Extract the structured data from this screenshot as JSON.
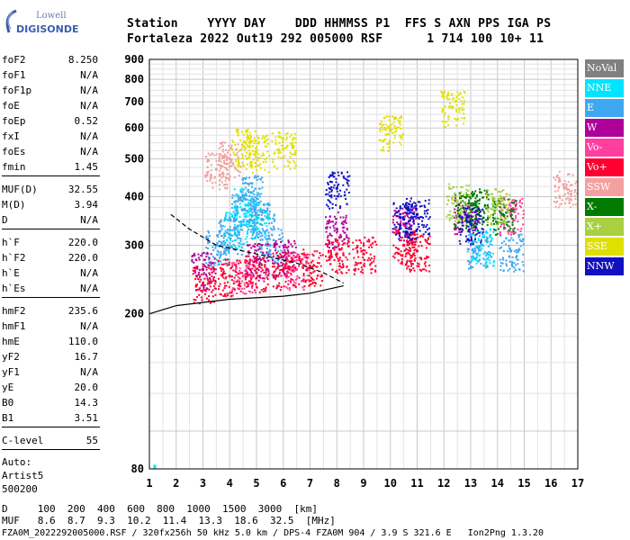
{
  "logo": {
    "top": "Lowell",
    "bottom": "DIGISONDE"
  },
  "header": {
    "labels": "Station    YYYY DAY    DDD HHMMSS P1  FFS S AXN PPS IGA PS",
    "values": "Fortaleza 2022 Out19 292 005000 RSF      1 714 100 10+ 11"
  },
  "params": {
    "group1": [
      {
        "name": "foF2",
        "value": "8.250"
      },
      {
        "name": "foF1",
        "value": "N/A"
      },
      {
        "name": "foF1p",
        "value": "N/A"
      },
      {
        "name": "foE",
        "value": "N/A"
      },
      {
        "name": "foEp",
        "value": "0.52"
      },
      {
        "name": "fxI",
        "value": "N/A"
      },
      {
        "name": "foEs",
        "value": "N/A"
      },
      {
        "name": "fmin",
        "value": "1.45"
      }
    ],
    "group2": [
      {
        "name": "MUF(D)",
        "value": "32.55"
      },
      {
        "name": "M(D)",
        "value": "3.94"
      },
      {
        "name": "D",
        "value": "N/A"
      }
    ],
    "group3": [
      {
        "name": "h`F",
        "value": "220.0"
      },
      {
        "name": "h`F2",
        "value": "220.0"
      },
      {
        "name": "h`E",
        "value": "N/A"
      },
      {
        "name": "h`Es",
        "value": "N/A"
      }
    ],
    "group4": [
      {
        "name": "hmF2",
        "value": "235.6"
      },
      {
        "name": "hmF1",
        "value": "N/A"
      },
      {
        "name": "hmE",
        "value": "110.0"
      },
      {
        "name": "yF2",
        "value": "16.7"
      },
      {
        "name": "yF1",
        "value": "N/A"
      },
      {
        "name": "yE",
        "value": "20.0"
      },
      {
        "name": "B0",
        "value": "14.3"
      },
      {
        "name": "B1",
        "value": "3.51"
      }
    ],
    "group5": [
      {
        "name": "C-level",
        "value": "55"
      }
    ],
    "auto": [
      "Auto:",
      "Artist5",
      "500200"
    ]
  },
  "chart_data": {
    "type": "scatter",
    "title": "",
    "xlabel": "",
    "ylabel": "",
    "xlim": [
      1,
      17
    ],
    "ylim": [
      80,
      900
    ],
    "x_ticks": [
      "1",
      "2",
      "3",
      "4",
      "5",
      "6",
      "7",
      "8",
      "9",
      "10",
      "11",
      "12",
      "13",
      "14",
      "15",
      "16",
      "17"
    ],
    "y_ticks": [
      "80",
      "200",
      "300",
      "400",
      "500",
      "600",
      "700",
      "800",
      "900"
    ],
    "grid": true,
    "y_scale": "log",
    "series": [
      {
        "name": "NNE",
        "color": "#00e5ff",
        "points": [
          [
            4.2,
            330
          ],
          [
            5.0,
            350
          ],
          [
            4.6,
            380
          ],
          [
            13.4,
            300
          ]
        ]
      },
      {
        "name": "E",
        "color": "#3fa7f0",
        "points": [
          [
            4.0,
            320
          ],
          [
            4.5,
            370
          ],
          [
            5.2,
            350
          ],
          [
            5.5,
            300
          ],
          [
            3.5,
            300
          ],
          [
            4.8,
            410
          ],
          [
            13.3,
            295
          ],
          [
            14.5,
            290
          ]
        ]
      },
      {
        "name": "W",
        "color": "#b0009a",
        "points": [
          [
            3.0,
            260
          ],
          [
            5.0,
            275
          ],
          [
            6.0,
            280
          ],
          [
            8.0,
            330
          ],
          [
            10.5,
            340
          ],
          [
            12.8,
            360
          ]
        ]
      },
      {
        "name": "Vo-",
        "color": "#ff3fa0",
        "points": [
          [
            4.5,
            250
          ],
          [
            6.5,
            260
          ],
          [
            14.5,
            360
          ]
        ]
      },
      {
        "name": "Vo+",
        "color": "#ff0030",
        "points": [
          [
            3.0,
            240
          ],
          [
            4.0,
            250
          ],
          [
            5.0,
            255
          ],
          [
            6.0,
            260
          ],
          [
            7.0,
            265
          ],
          [
            8.0,
            285
          ],
          [
            9.0,
            285
          ],
          [
            10.5,
            300
          ],
          [
            11.0,
            290
          ]
        ]
      },
      {
        "name": "SSW",
        "color": "#f4a0a0",
        "points": [
          [
            3.5,
            470
          ],
          [
            4.0,
            500
          ],
          [
            16.5,
            420
          ]
        ]
      },
      {
        "name": "X-",
        "color": "#007a00",
        "points": [
          [
            12.8,
            370
          ],
          [
            13.2,
            380
          ],
          [
            14.2,
            360
          ]
        ]
      },
      {
        "name": "X+",
        "color": "#a8d040",
        "points": [
          [
            12.5,
            390
          ],
          [
            14.0,
            380
          ]
        ]
      },
      {
        "name": "SSE",
        "color": "#e0e000",
        "points": [
          [
            4.5,
            540
          ],
          [
            5.0,
            520
          ],
          [
            6.0,
            530
          ],
          [
            10.0,
            590
          ],
          [
            12.3,
            680
          ]
        ]
      },
      {
        "name": "NNW",
        "color": "#1010c0",
        "points": [
          [
            8.0,
            420
          ],
          [
            10.5,
            350
          ],
          [
            11.0,
            360
          ],
          [
            13.0,
            340
          ]
        ]
      }
    ],
    "profile_line": {
      "solid": [
        [
          1.0,
          200
        ],
        [
          2.0,
          210
        ],
        [
          4.0,
          218
        ],
        [
          6.0,
          222
        ],
        [
          7.0,
          226
        ],
        [
          8.25,
          236
        ]
      ],
      "dashed": [
        [
          1.8,
          360
        ],
        [
          2.5,
          330
        ],
        [
          3.5,
          300
        ],
        [
          5.0,
          285
        ],
        [
          6.5,
          270
        ],
        [
          7.5,
          255
        ],
        [
          8.25,
          240
        ]
      ]
    }
  },
  "legend": [
    {
      "label": "NoVal",
      "color": "#808080"
    },
    {
      "label": "NNE",
      "color": "#00e5ff"
    },
    {
      "label": "E",
      "color": "#3fa7f0"
    },
    {
      "label": "W",
      "color": "#b0009a"
    },
    {
      "label": "Vo-",
      "color": "#ff3fa0"
    },
    {
      "label": "Vo+",
      "color": "#ff0030"
    },
    {
      "label": "SSW",
      "color": "#f4a0a0"
    },
    {
      "label": "X-",
      "color": "#007a00"
    },
    {
      "label": "X+",
      "color": "#a8d040"
    },
    {
      "label": "SSE",
      "color": "#e0e000"
    },
    {
      "label": "NNW",
      "color": "#1010c0"
    }
  ],
  "footer": {
    "line1": "D     100  200  400  600  800  1000  1500  3000  [km]",
    "line2": "MUF   8.6  8.7  9.3  10.2  11.4  13.3  18.6  32.5  [MHz]",
    "line3": "FZA0M_2022292005000.RSF / 320fx256h 50 kHz 5.0 km / DPS-4 FZA0M 904 / 3.9 S 321.6 E   Ion2Png 1.3.20"
  }
}
